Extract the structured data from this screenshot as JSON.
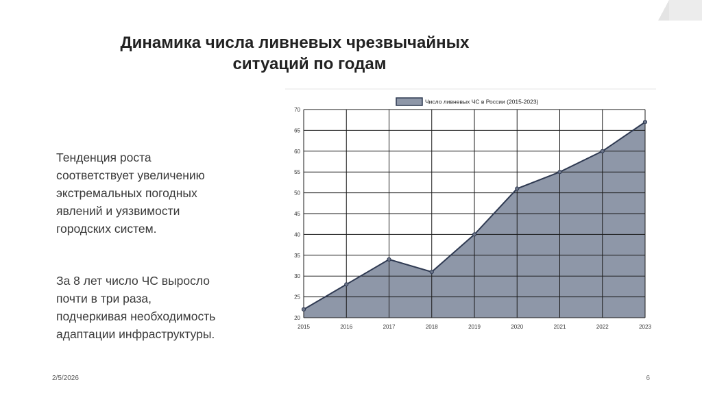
{
  "slide": {
    "title_line1": "Динамика числа ливневых чрезвычайных",
    "title_line2": "ситуаций по годам",
    "paragraph1": [
      "Тенденция роста",
      "соответствует увеличению",
      "экстремальных погодных",
      "явлений и уязвимости",
      "городских систем."
    ],
    "paragraph2": [
      "За 8 лет число ЧС выросло",
      "почти в три раза,",
      "подчеркивая необходимость",
      "адаптации инфраструктуры."
    ],
    "footer_date": "2/5/2026",
    "page_number": "6"
  },
  "chart_data": {
    "type": "area",
    "title": "",
    "xlabel": "",
    "ylabel": "",
    "x": [
      "2015",
      "2016",
      "2017",
      "2018",
      "2019",
      "2020",
      "2021",
      "2022",
      "2023"
    ],
    "series": [
      {
        "name": "Число ливневых ЧС в России (2015-2023)",
        "values": [
          22,
          28,
          34,
          31,
          40,
          51,
          55,
          60,
          67
        ]
      }
    ],
    "ylim": [
      20,
      70
    ],
    "yticks": [
      20,
      25,
      30,
      35,
      40,
      45,
      50,
      55,
      60,
      65,
      70
    ],
    "grid": true,
    "legend_position": "top-center",
    "colors": {
      "fill": "#8e97a8",
      "line": "#2f3a52",
      "grid": "#1a1a1a"
    }
  }
}
